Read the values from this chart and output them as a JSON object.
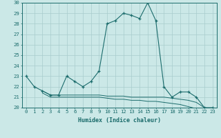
{
  "xlabel": "Humidex (Indice chaleur)",
  "bg_color": "#cbe8e7",
  "grid_color": "#a8cccc",
  "line_color": "#1a6b6b",
  "xlim": [
    -0.5,
    23.5
  ],
  "ylim": [
    20,
    30
  ],
  "xticks": [
    0,
    1,
    2,
    3,
    4,
    5,
    6,
    7,
    8,
    9,
    10,
    11,
    12,
    13,
    14,
    15,
    16,
    17,
    18,
    19,
    20,
    21,
    22,
    23
  ],
  "yticks": [
    20,
    21,
    22,
    23,
    24,
    25,
    26,
    27,
    28,
    29,
    30
  ],
  "main_x": [
    0,
    1,
    2,
    3,
    4,
    5,
    6,
    7,
    8,
    9,
    10,
    11,
    12,
    13,
    14,
    15,
    16,
    17,
    18,
    19,
    20,
    21,
    22,
    23
  ],
  "main_y": [
    23,
    22,
    21.6,
    21.2,
    21.2,
    23,
    22.5,
    22,
    22.5,
    23.5,
    28,
    28.3,
    29,
    28.8,
    28.5,
    30,
    28.3,
    22,
    21,
    21.5,
    21.5,
    21,
    20,
    20
  ],
  "flat1_x": [
    2,
    3,
    4,
    5,
    6,
    7,
    8,
    9,
    10,
    11,
    12,
    13,
    14,
    15,
    16,
    17,
    18,
    19,
    20,
    21,
    22,
    23
  ],
  "flat1_y": [
    21.6,
    21.2,
    21.2,
    21.2,
    21.2,
    21.2,
    21.2,
    21.2,
    21.1,
    21.1,
    21.1,
    21.0,
    21.0,
    21.0,
    21.0,
    21.0,
    20.9,
    20.8,
    20.7,
    20.5,
    20.0,
    19.9
  ],
  "flat2_x": [
    2,
    3,
    4,
    5,
    6,
    7,
    8,
    9,
    10,
    11,
    12,
    13,
    14,
    15,
    16,
    17,
    18,
    19,
    20,
    21,
    22,
    23
  ],
  "flat2_y": [
    21.4,
    21.0,
    21.0,
    21.0,
    21.0,
    21.0,
    21.0,
    21.0,
    20.9,
    20.8,
    20.8,
    20.7,
    20.7,
    20.6,
    20.6,
    20.5,
    20.4,
    20.3,
    20.1,
    19.9,
    19.8,
    19.7
  ],
  "xlabel_fontsize": 6.0,
  "tick_fontsize": 5.2
}
